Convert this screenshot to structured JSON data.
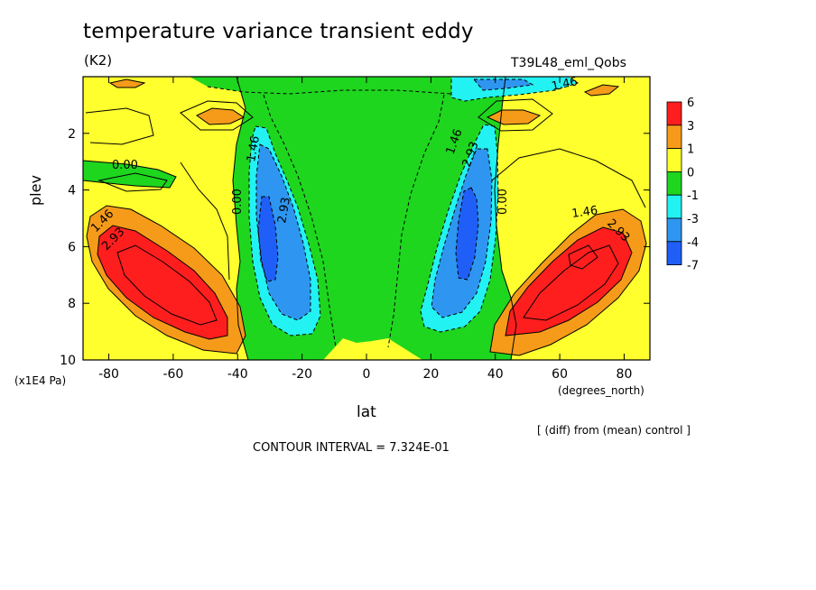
{
  "header": {
    "title": "temperature variance transient eddy",
    "units": "(K2)",
    "run_name": "T39L48_eml_Qobs"
  },
  "footer": {
    "diff_note": "[ (diff) from (mean) control ]",
    "contour_interval": "CONTOUR INTERVAL = 7.324E-01"
  },
  "chart_data": {
    "type": "contour",
    "title": "temperature variance transient eddy",
    "units": "K2",
    "xlabel": "lat",
    "xunits": "(degrees_north)",
    "ylabel": "plev",
    "yunits": "(x1E4 Pa)",
    "xlim": [
      -88,
      88
    ],
    "ylim": [
      10,
      0
    ],
    "xticks": [
      -80,
      -60,
      -40,
      -20,
      0,
      20,
      40,
      60,
      80
    ],
    "xtick_labels": [
      "-80",
      "-60",
      "-40",
      "-20",
      "0",
      "20",
      "40",
      "60",
      "80"
    ],
    "yticks": [
      2,
      4,
      6,
      8,
      10
    ],
    "ytick_labels": [
      "2",
      "4",
      "6",
      "8",
      "10"
    ],
    "contour_interval": 0.7324,
    "contour_labels": [
      "0.00",
      "1.46",
      "2.93"
    ],
    "colorbar": {
      "levels": [
        "6",
        "3",
        "1",
        "0",
        "-1",
        "-3",
        "-4",
        "-7"
      ],
      "colors": [
        "#ff1e1e",
        "#f59b19",
        "#ffff2e",
        "#1ed61e",
        "#22f2f2",
        "#2e96f0",
        "#1f5ff7"
      ]
    },
    "features": [
      {
        "label": "NH high-latitude maximum",
        "lat": 68,
        "plev": 7.0,
        "value": 4.4
      },
      {
        "label": "SH high-latitude maximum",
        "lat": -66,
        "plev": 7.2,
        "value": 4.4
      },
      {
        "label": "NH subtropical minimum",
        "lat": 32,
        "plev": 5.3,
        "value": -4.5
      },
      {
        "label": "SH subtropical minimum",
        "lat": -31,
        "plev": 5.3,
        "value": -4.5
      },
      {
        "label": "NH upper-level maximum",
        "lat": 48,
        "plev": 1.4,
        "value": 1.6
      },
      {
        "label": "SH upper-level maximum",
        "lat": -46,
        "plev": 1.4,
        "value": 1.6
      }
    ]
  },
  "colors": {
    "red": "#ff1e1e",
    "orange": "#f59b19",
    "yellow": "#ffff2e",
    "green": "#1ed61e",
    "cyan": "#22f2f2",
    "blue": "#2e96f0",
    "darkblue": "#1f5ff7"
  }
}
